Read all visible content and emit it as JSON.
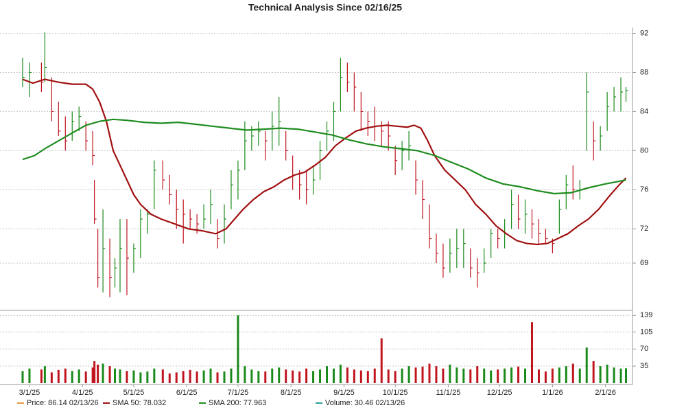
{
  "chart_data": [
    {
      "type": "ohlc",
      "title": "Technical Analysis Since 02/16/25",
      "price_label": "Price: 86.14 02/13/26",
      "price_color": "#e89a3c",
      "up_color": "#1a8a1a",
      "down_color": "#c0141e",
      "xlim": [
        7,
        365
      ],
      "xticks": [
        {
          "value": 13,
          "label": "3/1/25"
        },
        {
          "value": 44,
          "label": "4/1/25"
        },
        {
          "value": 74,
          "label": "5/1/25"
        },
        {
          "value": 105,
          "label": "6/1/25"
        },
        {
          "value": 135,
          "label": "7/1/25"
        },
        {
          "value": 166,
          "label": "8/1/25"
        },
        {
          "value": 197,
          "label": "9/1/25"
        },
        {
          "value": 227,
          "label": "10/1/25"
        },
        {
          "value": 258,
          "label": "11/1/25"
        },
        {
          "value": 288,
          "label": "12/1/25"
        },
        {
          "value": 319,
          "label": "1/1/26"
        },
        {
          "value": 350,
          "label": "2/1/26"
        }
      ],
      "ylim": [
        63.8,
        92.6
      ],
      "yticks": [
        {
          "value": 68.5,
          "label": "69"
        },
        72,
        76,
        80,
        84,
        88,
        92
      ],
      "grid": true,
      "x": [
        9,
        13,
        20,
        22,
        26,
        30,
        34,
        38,
        42,
        46,
        50,
        51,
        53,
        56,
        60,
        63,
        66,
        70,
        74,
        78,
        82,
        86,
        91,
        95,
        99,
        103,
        107,
        111,
        115,
        119,
        123,
        127,
        131,
        135,
        139,
        143,
        147,
        151,
        155,
        159,
        163,
        167,
        171,
        175,
        179,
        183,
        187,
        191,
        195,
        199,
        203,
        207,
        211,
        215,
        219,
        223,
        227,
        231,
        235,
        239,
        243,
        247,
        251,
        255,
        259,
        263,
        267,
        271,
        275,
        279,
        283,
        287,
        291,
        295,
        299,
        303,
        307,
        311,
        315,
        319,
        323,
        327,
        331,
        335,
        339,
        343,
        347,
        351,
        355,
        359,
        362
      ],
      "high": [
        89.5,
        89,
        89,
        92.1,
        87.5,
        85,
        83.5,
        84,
        84.5,
        83,
        82,
        77,
        72,
        74,
        71,
        69,
        73,
        73,
        70.5,
        74,
        74,
        79,
        79,
        77.5,
        76,
        75,
        74,
        73.5,
        74.5,
        76,
        73,
        74.5,
        78,
        79,
        83,
        82.5,
        83,
        82,
        84,
        85.5,
        82,
        79.5,
        78,
        78,
        78.5,
        81,
        83,
        85,
        89.5,
        89,
        88,
        86,
        84,
        84.5,
        83,
        83,
        80.5,
        81,
        82,
        79,
        77,
        74.5,
        71.5,
        70.5,
        71,
        72,
        72,
        70,
        69,
        70,
        72,
        72,
        73,
        76,
        75.5,
        75,
        74,
        73,
        72,
        71,
        75,
        77.5,
        78.5,
        77,
        88,
        83,
        82.5,
        86,
        86.5,
        87.5,
        86.5
      ],
      "low": [
        86.5,
        85.5,
        86,
        87,
        83,
        81.5,
        80,
        81,
        82,
        80,
        78.5,
        72.5,
        66,
        65.5,
        65,
        66,
        65.5,
        65.2,
        67.5,
        69,
        71.5,
        74,
        76,
        74.5,
        72,
        70.5,
        72,
        71.5,
        72,
        72.5,
        70,
        70.5,
        74,
        75,
        78,
        80,
        80.5,
        79,
        80,
        80.5,
        79,
        76,
        75,
        74.5,
        75.5,
        77,
        80,
        81,
        84,
        86,
        84,
        82,
        81.5,
        81,
        80.5,
        80,
        77.5,
        78,
        79,
        75.5,
        73,
        70,
        68.5,
        67,
        67.5,
        68,
        68,
        67,
        66,
        67.5,
        69,
        70,
        70,
        72,
        72,
        71.5,
        71,
        70.5,
        70.5,
        69.5,
        71.5,
        74,
        75,
        75,
        80,
        79,
        80,
        82,
        84,
        84,
        85
      ],
      "close": [
        87.5,
        88,
        87,
        88.5,
        84,
        82,
        81,
        83,
        83.5,
        81,
        79.5,
        73,
        67,
        70,
        67,
        68,
        70,
        69,
        70,
        73,
        73.5,
        78,
        77,
        75.5,
        74,
        73.5,
        73,
        72.5,
        73,
        74.5,
        71,
        73,
        76.5,
        78,
        81,
        81.5,
        82,
        81,
        82.5,
        83,
        80,
        77.5,
        76.5,
        76,
        77,
        80,
        82,
        84,
        87.5,
        87,
        86.5,
        84,
        83,
        82.5,
        82,
        81.5,
        79,
        80,
        80.5,
        77,
        75,
        71,
        69.5,
        68,
        69.5,
        70,
        70.5,
        68,
        67.5,
        68.5,
        71.5,
        71,
        71.5,
        74.5,
        73,
        73.5,
        72.5,
        71.5,
        71,
        70.5,
        74,
        76.5,
        76,
        76,
        86,
        81,
        81.5,
        84.5,
        85.5,
        86,
        86.14
      ],
      "series": [
        {
          "name": "SMA 50: 78.032",
          "color": "#a01010",
          "x": [
            9,
            15,
            22,
            30,
            38,
            46,
            50,
            54,
            58,
            62,
            66,
            70,
            74,
            78,
            84,
            90,
            98,
            106,
            114,
            122,
            128,
            132,
            138,
            144,
            150,
            156,
            162,
            168,
            174,
            180,
            186,
            192,
            198,
            204,
            210,
            216,
            222,
            228,
            234,
            238,
            242,
            246,
            250,
            256,
            262,
            268,
            274,
            280,
            286,
            292,
            298,
            304,
            310,
            316,
            322,
            328,
            334,
            340,
            346,
            352,
            358,
            362
          ],
          "values": [
            87.3,
            86.9,
            87.3,
            87,
            86.8,
            86.8,
            86.3,
            85,
            83,
            80,
            78.5,
            77,
            75.5,
            74.5,
            73.5,
            73,
            72.5,
            72,
            71.8,
            71.5,
            72,
            72.8,
            74,
            75,
            75.8,
            76.3,
            77,
            77.5,
            77.8,
            78.5,
            79.3,
            80.5,
            81.3,
            82,
            82.3,
            82.5,
            82.6,
            82.5,
            82.4,
            82.6,
            82.3,
            81,
            79.5,
            78,
            77,
            76,
            74.5,
            73.5,
            72.3,
            71.5,
            70.8,
            70.5,
            70.4,
            70.5,
            71,
            71.5,
            72.3,
            73,
            74,
            75.3,
            76.5,
            77.2
          ]
        },
        {
          "name": "SMA 200: 77.963",
          "color": "#1e8c1e",
          "x": [
            9,
            16,
            22,
            30,
            38,
            46,
            54,
            62,
            70,
            80,
            90,
            100,
            110,
            120,
            130,
            140,
            150,
            160,
            170,
            180,
            190,
            200,
            210,
            220,
            230,
            240,
            250,
            260,
            270,
            280,
            290,
            300,
            310,
            320,
            330,
            340,
            350,
            362
          ],
          "values": [
            79.1,
            79.5,
            80.2,
            81,
            81.8,
            82.6,
            83,
            83.2,
            83.1,
            82.9,
            82.8,
            82.9,
            82.7,
            82.5,
            82.3,
            82.1,
            82.2,
            82.3,
            82.2,
            81.9,
            81.6,
            81.1,
            80.7,
            80.4,
            80.2,
            80,
            79.5,
            78.8,
            78.1,
            77.2,
            76.6,
            76.3,
            75.9,
            75.6,
            75.7,
            76.2,
            76.6,
            77
          ]
        }
      ]
    },
    {
      "type": "bar",
      "name": "Volume: 30.46 02/13/26",
      "color": "#2aa198",
      "ylim": [
        0,
        145
      ],
      "yticks": [
        35,
        70,
        105,
        139
      ],
      "grid": true,
      "values": [
        25,
        30,
        28,
        35,
        22,
        27,
        30,
        25,
        28,
        24,
        32,
        45,
        38,
        40,
        35,
        30,
        28,
        25,
        26,
        22,
        24,
        30,
        28,
        20,
        22,
        25,
        27,
        24,
        26,
        30,
        22,
        24,
        30,
        139,
        35,
        28,
        25,
        24,
        30,
        32,
        28,
        26,
        24,
        30,
        25,
        28,
        35,
        30,
        38,
        32,
        28,
        26,
        25,
        30,
        92,
        28,
        25,
        30,
        35,
        32,
        34,
        40,
        35,
        30,
        38,
        32,
        30,
        28,
        35,
        30,
        26,
        28,
        30,
        32,
        34,
        30,
        125,
        28,
        24,
        30,
        32,
        35,
        40,
        30,
        73,
        45,
        35,
        38,
        32,
        30,
        30.46
      ]
    }
  ]
}
